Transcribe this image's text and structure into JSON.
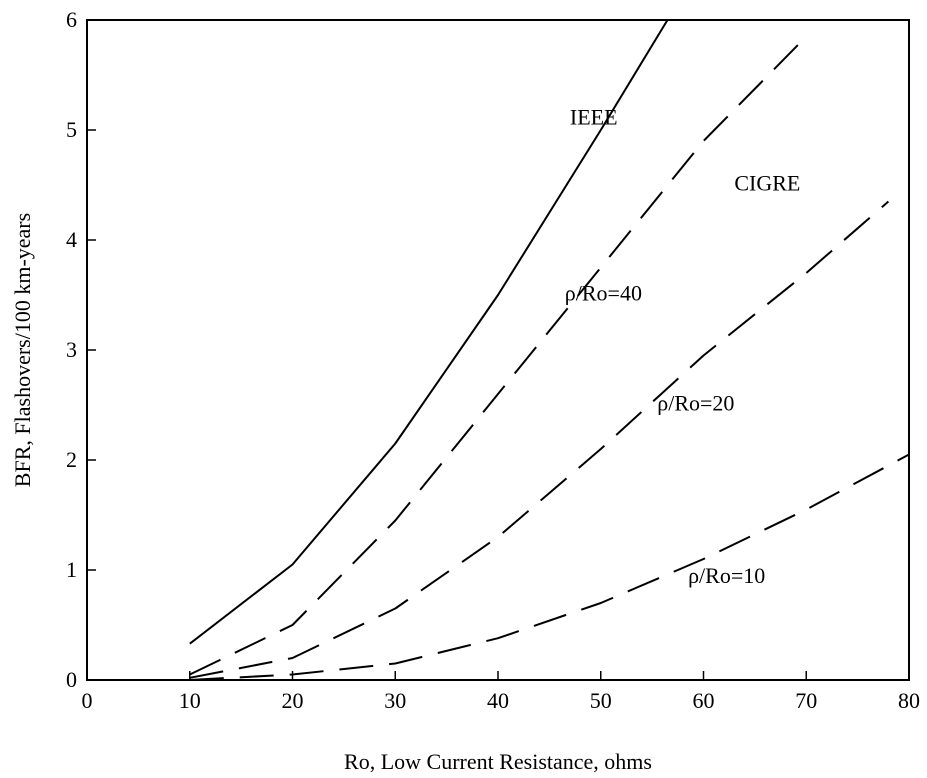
{
  "chart_data": {
    "type": "line",
    "title": "",
    "xlabel": "Ro, Low Current Resistance, ohms",
    "ylabel": "BFR, Flashovers/100 km-years",
    "xlim": [
      0,
      80
    ],
    "ylim": [
      0,
      6
    ],
    "x_ticks": [
      0,
      10,
      20,
      30,
      40,
      50,
      60,
      70,
      80
    ],
    "y_ticks": [
      0,
      1,
      2,
      3,
      4,
      5,
      6
    ],
    "grid": false,
    "legend": "none",
    "series": [
      {
        "name": "IEEE",
        "style": "solid",
        "x": [
          10,
          20,
          30,
          40,
          50,
          56.5
        ],
        "y": [
          0.33,
          1.05,
          2.15,
          3.5,
          5.0,
          6.0
        ]
      },
      {
        "name": "ρ/Ro=40",
        "style": "dashed",
        "x": [
          10,
          20,
          30,
          40,
          50,
          60,
          70
        ],
        "y": [
          0.05,
          0.5,
          1.45,
          2.6,
          3.75,
          4.9,
          5.85
        ]
      },
      {
        "name": "ρ/Ro=20",
        "style": "dashed",
        "x": [
          10,
          20,
          30,
          40,
          50,
          60,
          70,
          78
        ],
        "y": [
          0.02,
          0.2,
          0.65,
          1.3,
          2.1,
          2.95,
          3.7,
          4.35
        ]
      },
      {
        "name": "ρ/Ro=10",
        "style": "dashed",
        "x": [
          10,
          20,
          30,
          40,
          50,
          60,
          70,
          80
        ],
        "y": [
          0.0,
          0.05,
          0.15,
          0.38,
          0.7,
          1.1,
          1.55,
          2.05
        ]
      }
    ],
    "annotations": [
      {
        "text": "IEEE",
        "x": 47,
        "y": 5.05
      },
      {
        "text": "CIGRE",
        "x": 63,
        "y": 4.45
      },
      {
        "text": "ρ/Ro=40",
        "x": 46.5,
        "y": 3.45
      },
      {
        "text": "ρ/Ro=20",
        "x": 55.5,
        "y": 2.45
      },
      {
        "text": "ρ/Ro=10",
        "x": 58.5,
        "y": 0.88
      }
    ]
  }
}
